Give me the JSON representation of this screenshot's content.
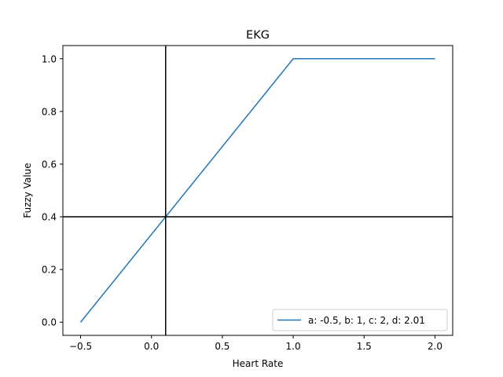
{
  "chart_data": {
    "type": "line",
    "title": "EKG",
    "xlabel": "Heart Rate",
    "ylabel": "Fuzzy Value",
    "xlim": [
      -0.625,
      2.125
    ],
    "ylim": [
      -0.05,
      1.05
    ],
    "xticks": [
      -0.5,
      0.0,
      0.5,
      1.0,
      1.5,
      2.0
    ],
    "xtick_labels": [
      "−0.5",
      "0.0",
      "0.5",
      "1.0",
      "1.5",
      "2.0"
    ],
    "yticks": [
      0.0,
      0.2,
      0.4,
      0.6,
      0.8,
      1.0
    ],
    "ytick_labels": [
      "0.0",
      "0.2",
      "0.4",
      "0.6",
      "0.8",
      "1.0"
    ],
    "grid": false,
    "legend_placement": "lower-right",
    "series": [
      {
        "name": "a: -0.5, b: 1, c: 2, d: 2.01",
        "color": "#1f77b4",
        "x": [
          -0.5,
          1.0,
          2.0
        ],
        "y": [
          0.0,
          1.0,
          1.0
        ]
      }
    ],
    "reference_lines": {
      "vertical_x": 0.1,
      "horizontal_y": 0.4,
      "color": "#000000"
    }
  }
}
